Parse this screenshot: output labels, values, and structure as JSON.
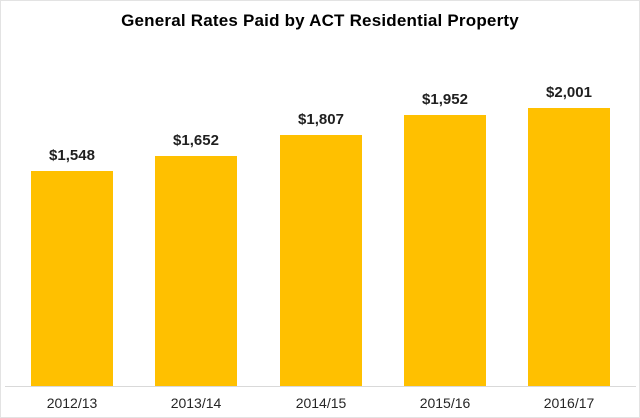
{
  "chart_data": {
    "type": "bar",
    "title": "General Rates Paid by ACT Residential Property",
    "categories": [
      "2012/13",
      "2013/14",
      "2014/15",
      "2015/16",
      "2016/17"
    ],
    "values": [
      1548,
      1652,
      1807,
      1952,
      2001
    ],
    "value_labels": [
      "$1,548",
      "$1,652",
      "$1,807",
      "$1,952",
      "$2,001"
    ],
    "xlabel": "",
    "ylabel": "",
    "ylim": [
      0,
      2500
    ],
    "grid": false,
    "legend": false,
    "colors": {
      "bar_fill": "#FFC000",
      "data_label": "#1F1F1F",
      "axis_label": "#262626",
      "title": "#000000",
      "axis_line": "#D9D9D9",
      "background": "#FFFFFF",
      "chart_border": "#E3E3E3"
    }
  }
}
